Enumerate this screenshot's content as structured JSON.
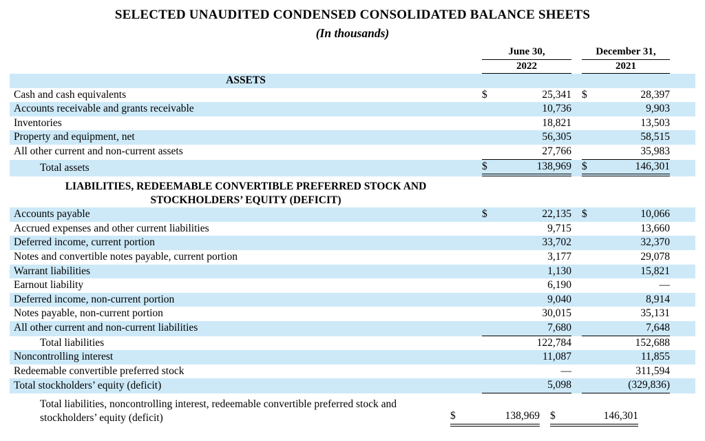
{
  "title": "SELECTED UNAUDITED CONDENSED CONSOLIDATED BALANCE SHEETS",
  "subtitle": "(In thousands)",
  "columns": [
    {
      "line1": "June 30,",
      "line2": "2022"
    },
    {
      "line1": "December 31,",
      "line2": "2021"
    }
  ],
  "sections": {
    "assets_header": "ASSETS",
    "liabilities_header_line1": "LIABILITIES, REDEEMABLE CONVERTIBLE PREFERRED STOCK AND",
    "liabilities_header_line2": "STOCKHOLDERS’ EQUITY (DEFICIT)"
  },
  "colors": {
    "stripe_blue": "#cde9f8",
    "text": "#000000"
  },
  "rows": [
    {
      "label": "Cash and cash equivalents",
      "s1": "$",
      "v1": "25,341",
      "s2": "$",
      "v2": "28,397"
    },
    {
      "label": "Accounts receivable and grants receivable",
      "s1": "",
      "v1": "10,736",
      "s2": "",
      "v2": "9,903"
    },
    {
      "label": "Inventories",
      "s1": "",
      "v1": "18,821",
      "s2": "",
      "v2": "13,503"
    },
    {
      "label": "Property and equipment, net",
      "s1": "",
      "v1": "56,305",
      "s2": "",
      "v2": "58,515"
    },
    {
      "label": "All other current and non-current assets",
      "s1": "",
      "v1": "27,766",
      "s2": "",
      "v2": "35,983"
    },
    {
      "label": "Total assets",
      "s1": "$",
      "v1": "138,969",
      "s2": "$",
      "v2": "146,301"
    },
    {
      "label": "Accounts payable",
      "s1": "$",
      "v1": "22,135",
      "s2": "$",
      "v2": "10,066"
    },
    {
      "label": "Accrued expenses and other current liabilities",
      "s1": "",
      "v1": "9,715",
      "s2": "",
      "v2": "13,660"
    },
    {
      "label": "Deferred income, current portion",
      "s1": "",
      "v1": "33,702",
      "s2": "",
      "v2": "32,370"
    },
    {
      "label": "Notes and convertible notes payable, current portion",
      "s1": "",
      "v1": "3,177",
      "s2": "",
      "v2": "29,078"
    },
    {
      "label": "Warrant liabilities",
      "s1": "",
      "v1": "1,130",
      "s2": "",
      "v2": "15,821"
    },
    {
      "label": "Earnout liability",
      "s1": "",
      "v1": "6,190",
      "s2": "",
      "v2": "—"
    },
    {
      "label": "Deferred income, non-current portion",
      "s1": "",
      "v1": "9,040",
      "s2": "",
      "v2": "8,914"
    },
    {
      "label": "Notes payable, non-current portion",
      "s1": "",
      "v1": "30,015",
      "s2": "",
      "v2": "35,131"
    },
    {
      "label": "All other current and non-current liabilities",
      "s1": "",
      "v1": "7,680",
      "s2": "",
      "v2": "7,648"
    },
    {
      "label": "Total liabilities",
      "s1": "",
      "v1": "122,784",
      "s2": "",
      "v2": "152,688"
    },
    {
      "label": "Noncontrolling interest",
      "s1": "",
      "v1": "11,087",
      "s2": "",
      "v2": "11,855"
    },
    {
      "label": "Redeemable convertible preferred stock",
      "s1": "",
      "v1": "—",
      "s2": "",
      "v2": "311,594"
    },
    {
      "label": "Total stockholders’ equity (deficit)",
      "s1": "",
      "v1": "5,098",
      "s2": "",
      "v2": "(329,836)"
    },
    {
      "label": "Total liabilities, noncontrolling interest, redeemable convertible preferred stock and stockholders’ equity (deficit)",
      "s1": "$",
      "v1": "138,969",
      "s2": "$",
      "v2": "146,301"
    }
  ]
}
